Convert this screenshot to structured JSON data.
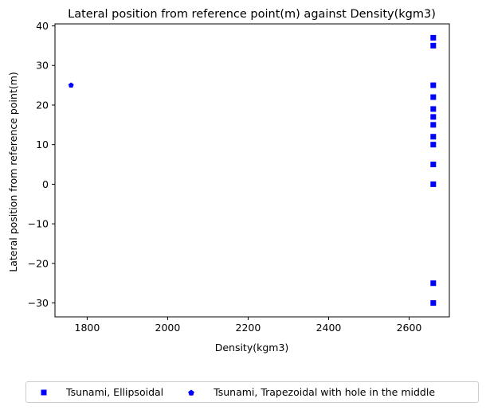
{
  "chart_data": {
    "type": "scatter",
    "title": "Lateral position from reference point(m) against Density(kgm3)",
    "xlabel": "Density(kgm3)",
    "ylabel": "Lateral position from reference point(m)",
    "xlim": [
      1720,
      2700
    ],
    "ylim": [
      -33.5,
      40.5
    ],
    "xticks": [
      1800,
      2000,
      2200,
      2400,
      2600
    ],
    "yticks": [
      -30,
      -20,
      -10,
      0,
      10,
      20,
      30,
      40
    ],
    "xtick_labels": [
      "1800",
      "2000",
      "2200",
      "2400",
      "2600"
    ],
    "ytick_labels": [
      "−30",
      "−20",
      "−10",
      "0",
      "10",
      "20",
      "30",
      "40"
    ],
    "grid": false,
    "legend_placement": "below plot, center",
    "series": [
      {
        "name": "Tsunami, Ellipsoidal",
        "marker": "square",
        "color": "#0000ff",
        "points": [
          {
            "x": 2660,
            "y": 37
          },
          {
            "x": 2660,
            "y": 35
          },
          {
            "x": 2660,
            "y": 25
          },
          {
            "x": 2660,
            "y": 22
          },
          {
            "x": 2660,
            "y": 19
          },
          {
            "x": 2660,
            "y": 17
          },
          {
            "x": 2660,
            "y": 15
          },
          {
            "x": 2660,
            "y": 12
          },
          {
            "x": 2660,
            "y": 10
          },
          {
            "x": 2660,
            "y": 5
          },
          {
            "x": 2660,
            "y": 0
          },
          {
            "x": 2660,
            "y": -25
          },
          {
            "x": 2660,
            "y": -30
          }
        ]
      },
      {
        "name": "Tsunami, Trapezoidal with hole in the middle",
        "marker": "pentagon",
        "color": "#0000ff",
        "points": [
          {
            "x": 1760,
            "y": 25
          }
        ]
      }
    ]
  }
}
